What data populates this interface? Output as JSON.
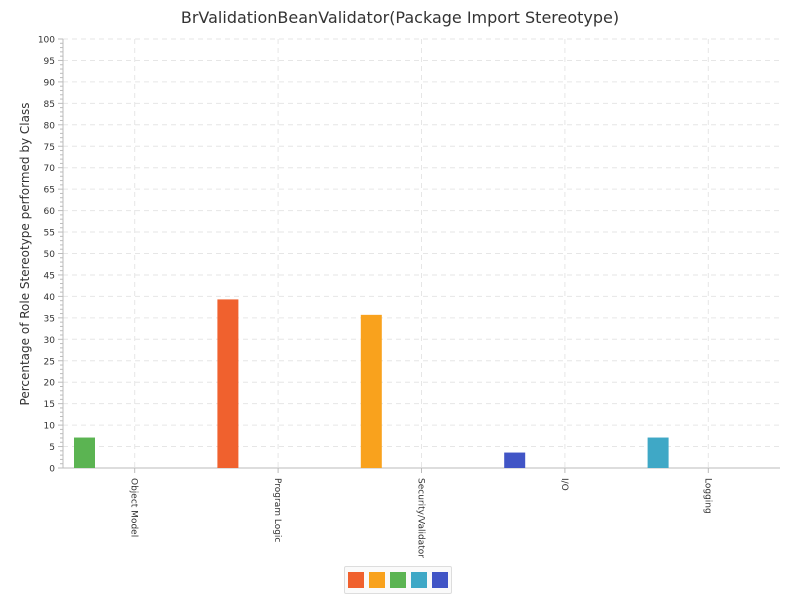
{
  "chart_data": {
    "type": "bar",
    "title": "BrValidationBeanValidator(Package Import Stereotype)",
    "xlabel": "",
    "ylabel": "Percentage of Role Stereotype performed by Class",
    "ylim": [
      0,
      100
    ],
    "yticks": [
      0,
      5,
      10,
      15,
      20,
      25,
      30,
      35,
      40,
      45,
      50,
      55,
      60,
      65,
      70,
      75,
      80,
      85,
      90,
      95,
      100
    ],
    "grid": true,
    "categories": [
      "Object Model",
      "Program Logic",
      "Security/Validator",
      "I/O",
      "Logging"
    ],
    "series": [
      {
        "name": "",
        "color": "#f0612e",
        "values": [
          0,
          39.3,
          0,
          0,
          0
        ]
      },
      {
        "name": "",
        "color": "#f9a21d",
        "values": [
          0,
          0,
          35.7,
          0,
          0
        ]
      },
      {
        "name": "",
        "color": "#5bb452",
        "values": [
          7.1,
          0,
          0,
          0,
          0
        ]
      },
      {
        "name": "",
        "color": "#3fa8c6",
        "values": [
          0,
          0,
          0,
          0,
          7.1
        ]
      },
      {
        "name": "",
        "color": "#4155c6",
        "values": [
          0,
          0,
          0,
          3.6,
          0
        ]
      }
    ],
    "legend": "bottom-center"
  }
}
